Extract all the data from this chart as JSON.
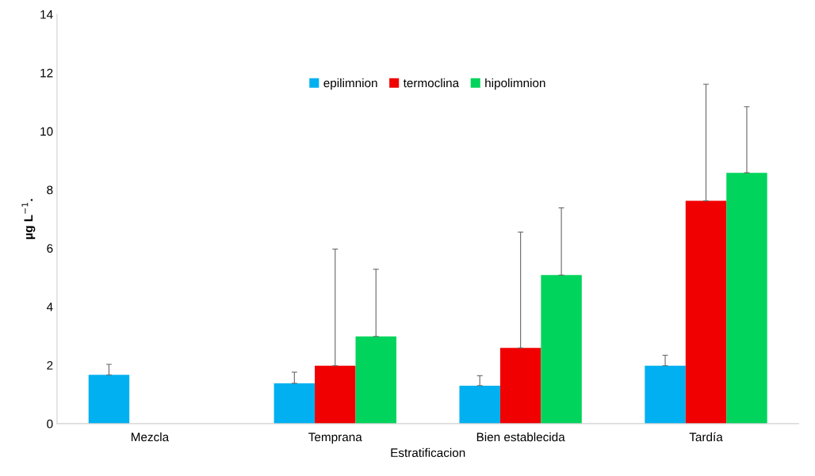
{
  "chart_data": {
    "type": "bar",
    "xlabel": "Estratificacion",
    "ylabel": "µg L$^{−1}$.",
    "categories": [
      "Mezcla",
      "Temprana",
      "Bien establecida",
      "Tardía"
    ],
    "series": [
      {
        "name": "epilimnion",
        "color": "#00b0f0",
        "values": [
          1.67,
          1.38,
          1.3,
          1.98
        ],
        "errors": [
          [
            1.67,
            2.03
          ],
          [
            1.38,
            1.76
          ],
          [
            1.3,
            1.64
          ],
          [
            1.98,
            2.34
          ]
        ]
      },
      {
        "name": "termoclina",
        "color": "#f00000",
        "values": [
          null,
          1.98,
          2.59,
          7.62
        ],
        "errors": [
          null,
          [
            1.98,
            5.97
          ],
          [
            2.59,
            6.55
          ],
          [
            7.62,
            11.61
          ]
        ]
      },
      {
        "name": "hipolimnion",
        "color": "#00d45c",
        "values": [
          null,
          2.98,
          5.08,
          8.58
        ],
        "errors": [
          null,
          [
            2.98,
            5.28
          ],
          [
            5.08,
            7.38
          ],
          [
            8.58,
            10.84
          ]
        ]
      }
    ],
    "ylim": [
      0,
      14
    ],
    "yticks": [
      0,
      2,
      4,
      6,
      8,
      10,
      12,
      14
    ],
    "grid": false,
    "legend": "top"
  }
}
